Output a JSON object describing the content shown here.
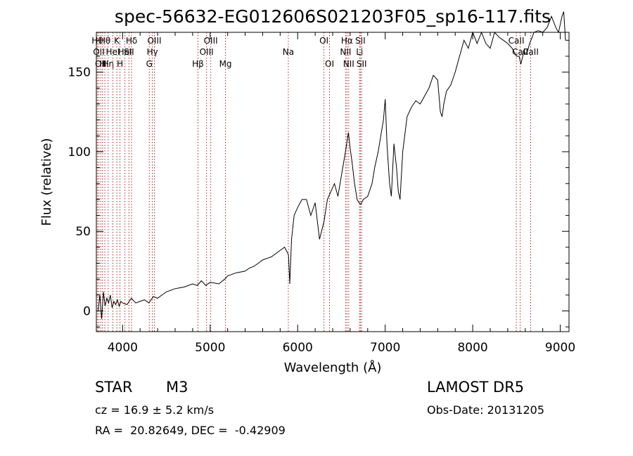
{
  "chart_data": {
    "type": "line",
    "title": "spec-56632-EG012606S021203F05_sp16-117.fits",
    "xlabel": "Wavelength (Å)",
    "ylabel": "Flux (relative)",
    "xlim": [
      3700,
      9100
    ],
    "ylim": [
      -13,
      175
    ],
    "x_ticks": [
      4000,
      5000,
      6000,
      7000,
      8000,
      9000
    ],
    "y_ticks": [
      0,
      50,
      100,
      150
    ],
    "grid": false,
    "line_color": "#000000",
    "marker_color": "#b22222",
    "series": [
      {
        "x": [
          3720,
          3740,
          3760,
          3780,
          3800,
          3820,
          3840,
          3860,
          3880,
          3900,
          3920,
          3940,
          3960,
          3980,
          4000,
          4050,
          4100,
          4150,
          4200,
          4250,
          4300,
          4350,
          4400,
          4450,
          4500,
          4600,
          4700,
          4800,
          4850,
          4870,
          4900,
          4950,
          5000,
          5100,
          5167,
          5200,
          5300,
          5400,
          5450,
          5500,
          5550,
          5600,
          5700,
          5750,
          5800,
          5850,
          5880,
          5895,
          5910,
          5930,
          5960,
          6000,
          6050,
          6100,
          6150,
          6200,
          6250,
          6300,
          6320,
          6340,
          6380,
          6420,
          6460,
          6500,
          6540,
          6560,
          6580,
          6600,
          6620,
          6650,
          6680,
          6700,
          6720,
          6750,
          6800,
          6850,
          6880,
          6920,
          6950,
          6980,
          7000,
          7020,
          7050,
          7070,
          7100,
          7130,
          7150,
          7170,
          7200,
          7250,
          7300,
          7350,
          7400,
          7450,
          7500,
          7550,
          7600,
          7630,
          7650,
          7670,
          7700,
          7750,
          7800,
          7850,
          7900,
          7950,
          8000,
          8050,
          8100,
          8150,
          8200,
          8250,
          8300,
          8350,
          8400,
          8450,
          8500,
          8530,
          8550,
          8580,
          8620,
          8650,
          8680,
          8700,
          8750,
          8800,
          8850,
          8900,
          8950,
          8980,
          9000,
          9020,
          9040,
          9060
        ],
        "y": [
          0,
          10,
          -5,
          12,
          3,
          8,
          5,
          10,
          2,
          6,
          4,
          7,
          3,
          6,
          5,
          4,
          8,
          5,
          6,
          7,
          5,
          9,
          8,
          10,
          12,
          14,
          15,
          17,
          16,
          17,
          19,
          16,
          18,
          17,
          20,
          22,
          24,
          25,
          27,
          28,
          30,
          32,
          34,
          36,
          38,
          40,
          37,
          35,
          17,
          45,
          60,
          65,
          70,
          70,
          60,
          68,
          45,
          56,
          63,
          70,
          75,
          80,
          72,
          85,
          98,
          105,
          112,
          102,
          94,
          80,
          70,
          68,
          67,
          70,
          72,
          80,
          90,
          100,
          110,
          120,
          133,
          105,
          80,
          72,
          105,
          90,
          75,
          70,
          100,
          122,
          128,
          132,
          130,
          135,
          140,
          148,
          145,
          125,
          122,
          130,
          138,
          142,
          150,
          160,
          170,
          165,
          175,
          168,
          175,
          168,
          165,
          175,
          172,
          170,
          168,
          165,
          160,
          160,
          155,
          162,
          162,
          168,
          172,
          175,
          176,
          175,
          178,
          185,
          178,
          175,
          180,
          185,
          188,
          170
        ]
      }
    ],
    "line_markers": [
      {
        "x": 3712,
        "label": "Hθ",
        "row": 1
      },
      {
        "x": 3728,
        "label": "OII",
        "row": 2
      },
      {
        "x": 3750,
        "label": "OII",
        "row": 3
      },
      {
        "x": 3771,
        "label": "H",
        "row": 3
      },
      {
        "x": 3797,
        "label": "Hθ",
        "row": 1
      },
      {
        "x": 3835,
        "label": "Hη",
        "row": 3
      },
      {
        "x": 3889,
        "label": "HeI",
        "row": 2
      },
      {
        "x": 3934,
        "label": "K",
        "row": 1
      },
      {
        "x": 3970,
        "label": "H",
        "row": 3
      },
      {
        "x": 4026,
        "label": "HeI",
        "row": 2
      },
      {
        "x": 4072,
        "label": "SII",
        "row": 2
      },
      {
        "x": 4102,
        "label": "Hδ",
        "row": 1
      },
      {
        "x": 4305,
        "label": "G",
        "row": 3
      },
      {
        "x": 4340,
        "label": "Hγ",
        "row": 2
      },
      {
        "x": 4363,
        "label": "OIII",
        "row": 1
      },
      {
        "x": 4861,
        "label": "Hβ",
        "row": 3
      },
      {
        "x": 4959,
        "label": "OIII",
        "row": 2
      },
      {
        "x": 5007,
        "label": "OIII",
        "row": 1
      },
      {
        "x": 5175,
        "label": "Mg",
        "row": 3
      },
      {
        "x": 5893,
        "label": "Na",
        "row": 2
      },
      {
        "x": 6300,
        "label": "OI",
        "row": 1
      },
      {
        "x": 6364,
        "label": "OI",
        "row": 3
      },
      {
        "x": 6548,
        "label": "NII",
        "row": 2
      },
      {
        "x": 6563,
        "label": "Hα",
        "row": 1
      },
      {
        "x": 6583,
        "label": "NII",
        "row": 3
      },
      {
        "x": 6707,
        "label": "Li",
        "row": 2
      },
      {
        "x": 6716,
        "label": "SII",
        "row": 1
      },
      {
        "x": 6731,
        "label": "SII",
        "row": 3
      },
      {
        "x": 8498,
        "label": "CaII",
        "row": 1
      },
      {
        "x": 8542,
        "label": "CaII",
        "row": 2
      },
      {
        "x": 8662,
        "label": "CaII",
        "row": 2
      }
    ]
  },
  "info": {
    "object_class": "STAR",
    "subclass": "M3",
    "survey": "LAMOST DR5",
    "redshift_line": "cz = 16.9 ± 5.2 km/s",
    "obs_date": "Obs-Date: 20131205",
    "coords": "RA =  20.82649, DEC =  -0.42909"
  }
}
